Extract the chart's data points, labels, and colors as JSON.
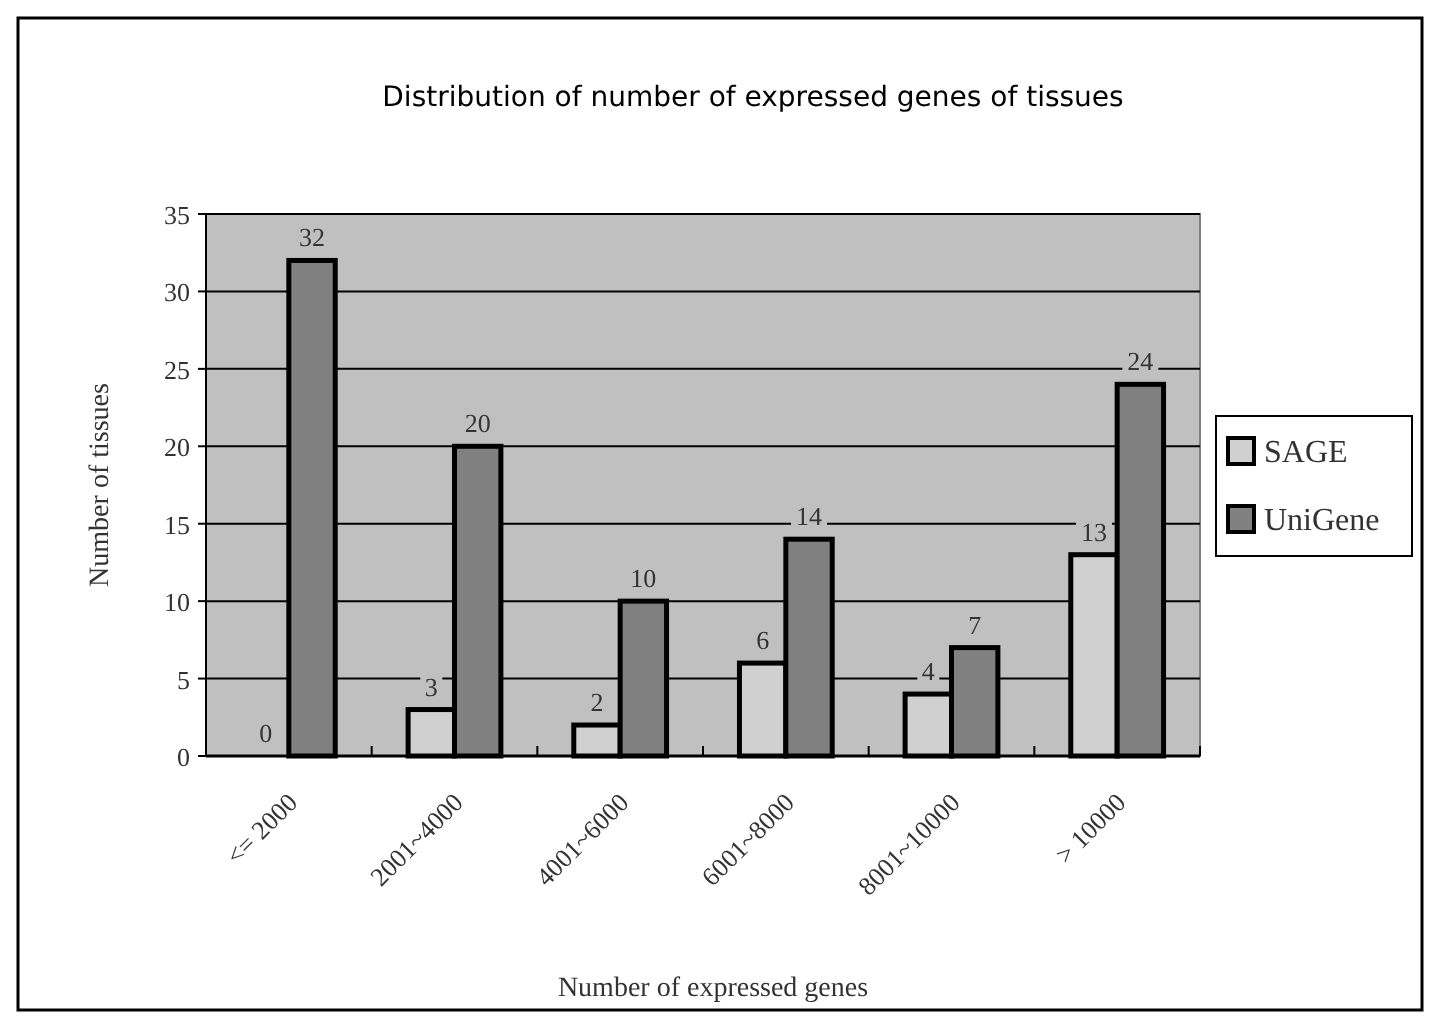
{
  "chart_data": {
    "type": "bar",
    "title": "Distribution of number of expressed genes of tissues",
    "xlabel": "Number of expressed genes",
    "ylabel": "Number of tissues",
    "categories": [
      "<= 2000",
      "2001~4000",
      "4001~6000",
      "6001~8000",
      "8001~10000",
      "> 10000"
    ],
    "series": [
      {
        "name": "SAGE",
        "color": "#d0d0d0",
        "values": [
          0,
          3,
          2,
          6,
          4,
          13
        ]
      },
      {
        "name": "UniGene",
        "color": "#808080",
        "values": [
          32,
          20,
          10,
          14,
          7,
          24
        ]
      }
    ],
    "ylim": [
      0,
      35
    ],
    "yticks": [
      0,
      5,
      10,
      15,
      20,
      25,
      30,
      35
    ],
    "grid": "y",
    "legend": "right",
    "data_labels": true
  }
}
